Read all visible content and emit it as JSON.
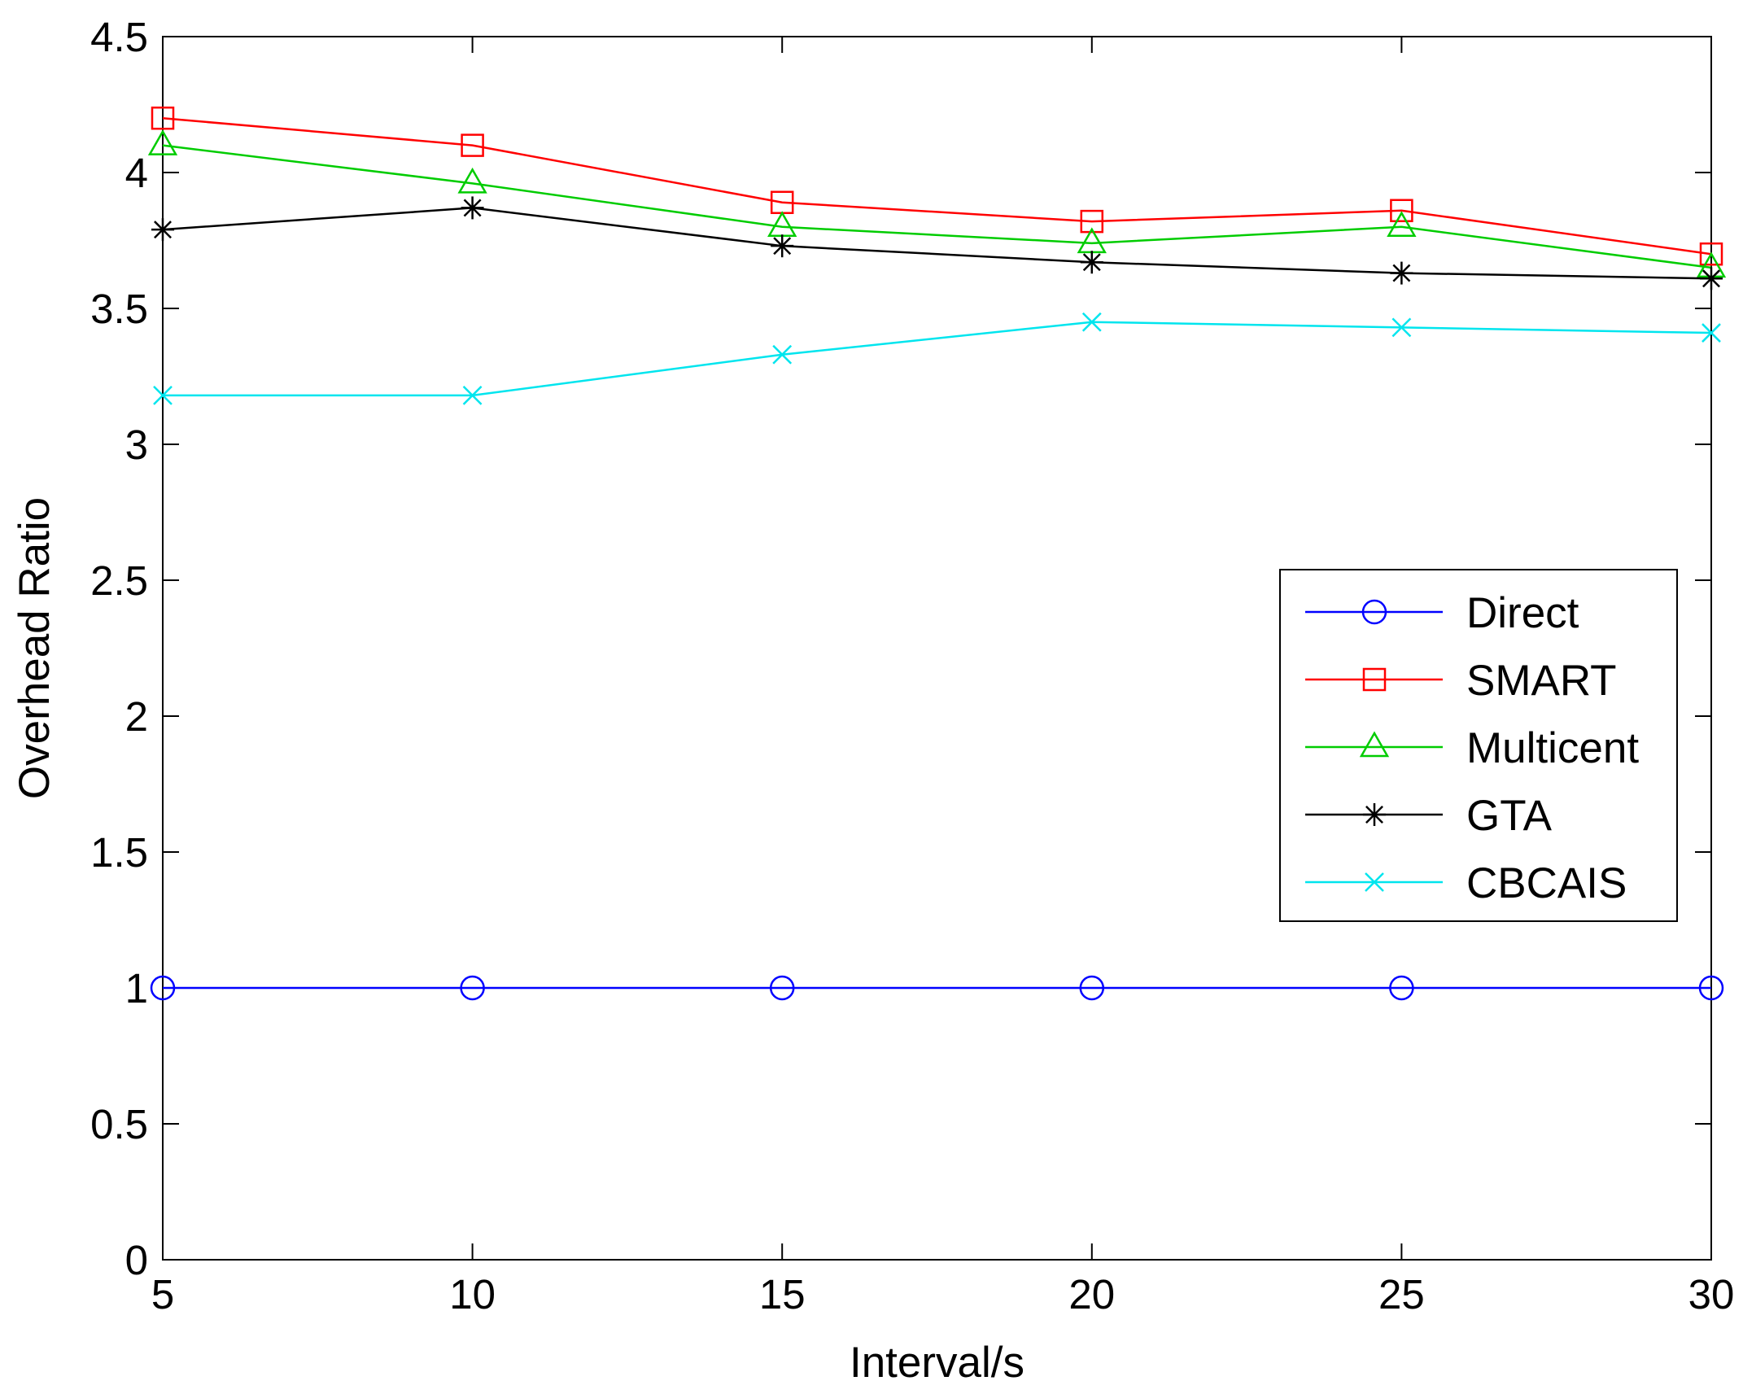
{
  "chart_data": {
    "type": "line",
    "title": "",
    "xlabel": "Interval/s",
    "ylabel": "Overhead Ratio",
    "xlim": [
      5,
      30
    ],
    "ylim": [
      0,
      4.5
    ],
    "xticks": [
      5,
      10,
      15,
      20,
      25,
      30
    ],
    "xtick_labels": [
      "5",
      "10",
      "15",
      "20",
      "25",
      "30"
    ],
    "yticks": [
      0,
      0.5,
      1,
      1.5,
      2,
      2.5,
      3,
      3.5,
      4,
      4.5
    ],
    "ytick_labels": [
      "0",
      "0.5",
      "1",
      "1.5",
      "2",
      "2.5",
      "3",
      "3.5",
      "4",
      "4.5"
    ],
    "grid": false,
    "legend_position": "right",
    "x": [
      5,
      10,
      15,
      20,
      25,
      30
    ],
    "series": [
      {
        "name": "Direct",
        "color": "#0000ff",
        "marker": "circle",
        "values": [
          1,
          1,
          1,
          1,
          1,
          1
        ]
      },
      {
        "name": "SMART",
        "color": "#ff0000",
        "marker": "square",
        "values": [
          4.2,
          4.1,
          3.89,
          3.82,
          3.86,
          3.7
        ]
      },
      {
        "name": "Multicent",
        "color": "#00cc00",
        "marker": "triangle",
        "values": [
          4.1,
          3.96,
          3.8,
          3.74,
          3.8,
          3.65
        ]
      },
      {
        "name": "GTA",
        "color": "#000000",
        "marker": "star",
        "values": [
          3.79,
          3.87,
          3.73,
          3.67,
          3.63,
          3.61
        ]
      },
      {
        "name": "CBCAIS",
        "color": "#00e5ee",
        "marker": "x",
        "values": [
          3.18,
          3.18,
          3.33,
          3.45,
          3.43,
          3.41
        ]
      }
    ]
  }
}
